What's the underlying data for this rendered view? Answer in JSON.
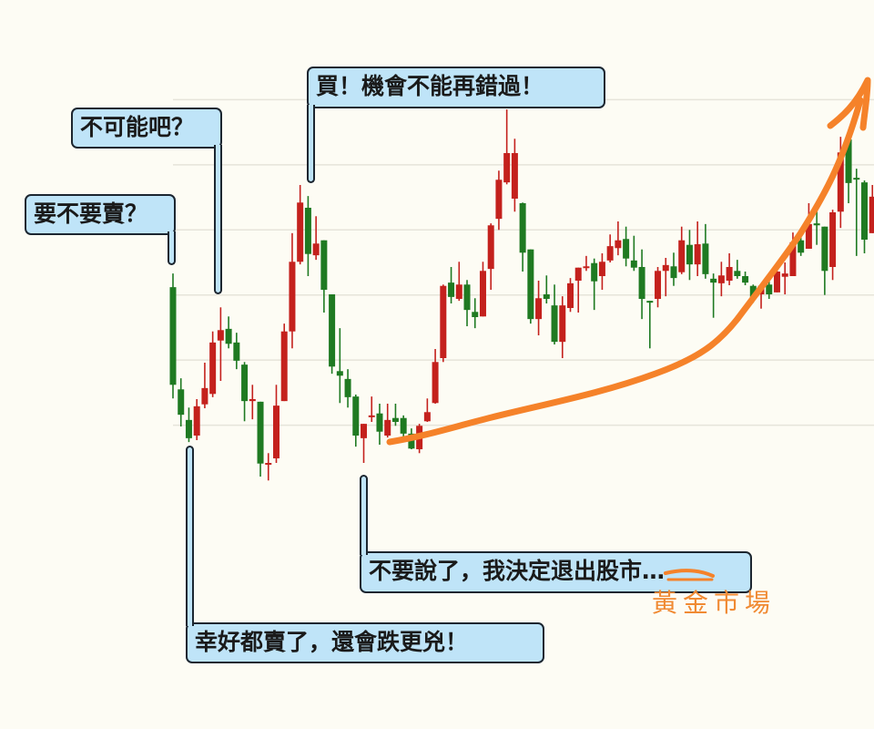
{
  "chart_data": {
    "type": "candlestick",
    "title": "",
    "xlabel": "",
    "ylabel": "",
    "ylim": [
      0,
      70
    ],
    "grid": true,
    "colors": {
      "up": "#c4211d",
      "down": "#1f7a22",
      "grid": "#e6e4da",
      "background": "#fdfcf4"
    },
    "ohlc_order": [
      "open",
      "high",
      "low",
      "close"
    ],
    "candles": [
      [
        31.2,
        33.3,
        14.1,
        16.2
      ],
      [
        15.5,
        17.2,
        9.8,
        11.6
      ],
      [
        10.8,
        12.7,
        7.4,
        8.0
      ],
      [
        8.4,
        14.0,
        7.7,
        12.9
      ],
      [
        13.2,
        19.6,
        12.6,
        15.7
      ],
      [
        14.8,
        24.4,
        14.3,
        22.7
      ],
      [
        23.0,
        28.1,
        16.8,
        24.6
      ],
      [
        24.8,
        26.7,
        21.8,
        22.5
      ],
      [
        22.7,
        24.2,
        18.6,
        19.9
      ],
      [
        19.3,
        19.7,
        10.6,
        13.7
      ],
      [
        13.7,
        16.2,
        10.9,
        14.0
      ],
      [
        13.6,
        13.6,
        2.1,
        4.1
      ],
      [
        4.1,
        5.7,
        1.5,
        4.2
      ],
      [
        4.9,
        16.2,
        4.2,
        13.0
      ],
      [
        13.7,
        25.6,
        13.7,
        24.4
      ],
      [
        24.4,
        39.5,
        21.8,
        35.1
      ],
      [
        35.1,
        46.9,
        34.7,
        44.2
      ],
      [
        43.4,
        45.2,
        32.9,
        36.3
      ],
      [
        36.1,
        42.1,
        35.4,
        37.9
      ],
      [
        38.4,
        38.4,
        27.3,
        30.8
      ],
      [
        30.1,
        30.1,
        17.9,
        19.0
      ],
      [
        18.3,
        24.9,
        13.4,
        17.6
      ],
      [
        17.1,
        18.6,
        12.7,
        14.3
      ],
      [
        14.4,
        14.7,
        6.7,
        8.4
      ],
      [
        8.0,
        10.2,
        4.2,
        10.2
      ],
      [
        11.3,
        14.4,
        10.5,
        11.5
      ],
      [
        11.8,
        13.3,
        7.0,
        9.0
      ],
      [
        8.4,
        13.3,
        8.1,
        10.8
      ],
      [
        11.1,
        13.3,
        9.9,
        10.5
      ],
      [
        11.1,
        11.5,
        8.1,
        8.7
      ],
      [
        8.7,
        9.5,
        6.3,
        6.4
      ],
      [
        6.3,
        10.2,
        5.7,
        9.9
      ],
      [
        10.6,
        14.1,
        10.5,
        12.0
      ],
      [
        13.4,
        21.7,
        13.3,
        19.7
      ],
      [
        20.3,
        31.6,
        19.7,
        31.4
      ],
      [
        31.9,
        34.3,
        28.7,
        29.7
      ],
      [
        29.4,
        35.1,
        29.1,
        31.6
      ],
      [
        31.6,
        32.3,
        25.2,
        27.7
      ],
      [
        27.4,
        29.5,
        24.9,
        26.6
      ],
      [
        26.7,
        35.1,
        26.7,
        33.7
      ],
      [
        34.0,
        41.0,
        30.8,
        40.7
      ],
      [
        41.7,
        49.1,
        40.0,
        47.7
      ],
      [
        47.3,
        58.5,
        47.0,
        51.8
      ],
      [
        44.8,
        54.0,
        42.8,
        51.8
      ],
      [
        44.1,
        44.2,
        33.6,
        36.5
      ],
      [
        37.0,
        37.0,
        25.6,
        26.3
      ],
      [
        26.3,
        32.2,
        23.8,
        29.5
      ],
      [
        30.1,
        33.0,
        28.7,
        29.4
      ],
      [
        28.4,
        31.6,
        22.4,
        22.8
      ],
      [
        22.8,
        29.8,
        20.3,
        28.4
      ],
      [
        28.0,
        32.6,
        27.4,
        31.8
      ],
      [
        32.2,
        34.2,
        27.3,
        34.2
      ],
      [
        34.2,
        36.0,
        33.7,
        34.4
      ],
      [
        34.9,
        35.6,
        27.7,
        32.1
      ],
      [
        32.9,
        36.4,
        30.8,
        35.1
      ],
      [
        35.3,
        39.3,
        35.0,
        37.5
      ],
      [
        37.2,
        41.3,
        36.1,
        38.4
      ],
      [
        38.6,
        40.5,
        34.4,
        35.6
      ],
      [
        35.3,
        39.1,
        33.7,
        34.2
      ],
      [
        34.3,
        37.0,
        26.3,
        29.4
      ],
      [
        29.1,
        29.1,
        21.8,
        29.0
      ],
      [
        29.4,
        34.3,
        28.1,
        33.7
      ],
      [
        33.7,
        35.7,
        29.8,
        34.6
      ],
      [
        34.4,
        36.5,
        31.4,
        32.6
      ],
      [
        33.5,
        40.5,
        33.2,
        38.4
      ],
      [
        37.7,
        40.0,
        32.3,
        34.7
      ],
      [
        34.7,
        41.3,
        32.9,
        37.8
      ],
      [
        37.9,
        40.9,
        32.5,
        33.2
      ],
      [
        32.5,
        33.3,
        26.5,
        31.9
      ],
      [
        31.8,
        35.1,
        29.8,
        33.0
      ],
      [
        32.2,
        36.4,
        31.5,
        34.3
      ],
      [
        33.7,
        35.4,
        32.5,
        32.9
      ],
      [
        32.9,
        33.6,
        31.5,
        31.9
      ],
      [
        31.4,
        31.6,
        28.8,
        29.7
      ],
      [
        30.1,
        31.6,
        27.9,
        31.4
      ],
      [
        31.6,
        32.3,
        29.4,
        30.1
      ],
      [
        30.4,
        35.0,
        30.4,
        33.6
      ],
      [
        32.8,
        35.0,
        30.1,
        33.3
      ],
      [
        32.9,
        39.6,
        32.9,
        38.1
      ],
      [
        38.4,
        40.0,
        36.0,
        36.5
      ],
      [
        37.1,
        44.1,
        37.1,
        40.9
      ],
      [
        41.0,
        43.8,
        37.7,
        40.7
      ],
      [
        40.5,
        40.5,
        30.0,
        33.7
      ],
      [
        34.3,
        43.1,
        32.3,
        42.7
      ],
      [
        42.8,
        54.3,
        40.3,
        51.9
      ],
      [
        53.9,
        55.3,
        44.1,
        47.2
      ],
      [
        48.0,
        49.4,
        36.0,
        47.9
      ],
      [
        47.3,
        47.6,
        36.4,
        38.5
      ],
      [
        39.5,
        46.9,
        39.5,
        45.1
      ]
    ],
    "gridlines": [
      10,
      20,
      30,
      40,
      50,
      60
    ]
  },
  "bubbles": {
    "sell": "要不要賣？",
    "impossible": "不可能吧？",
    "buy": "買！機會不能再錯過！",
    "quit": "不要說了，我決定退出股市…",
    "glad": "幸好都賣了，還會跌更兇！"
  },
  "annotation": {
    "handwritten_replacement": "黃金市場",
    "arrow_color": "#f5822a"
  }
}
